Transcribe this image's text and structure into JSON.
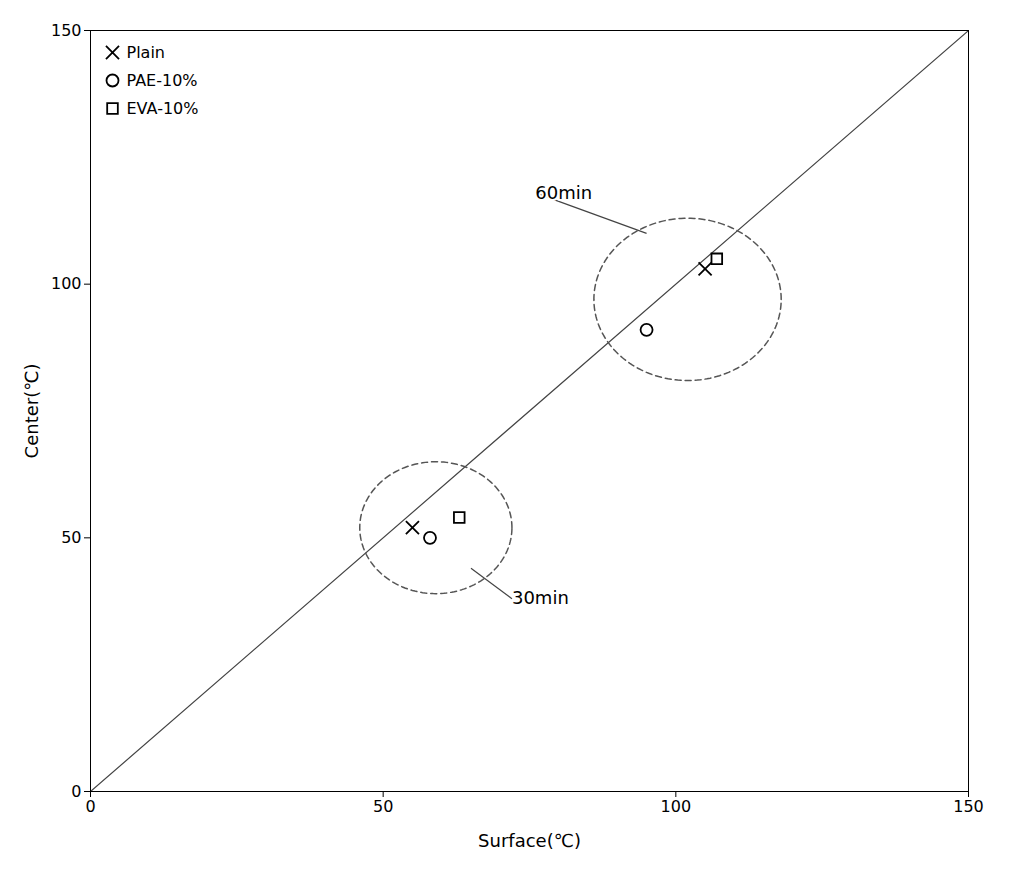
{
  "chart_data": {
    "type": "scatter",
    "xlabel": "Surface(℃)",
    "ylabel": "Center(℃)",
    "xlim": [
      0,
      150
    ],
    "ylim": [
      0,
      150
    ],
    "xticks": [
      0,
      50,
      100,
      150
    ],
    "yticks": [
      0,
      50,
      100,
      150
    ],
    "grid": false,
    "legend": "upper left",
    "series": [
      {
        "name": "Plain",
        "marker": "x",
        "color": "#000000",
        "x": [
          55,
          105
        ],
        "values": [
          52,
          103
        ]
      },
      {
        "name": "PAE-10%",
        "marker": "circle",
        "color": "#000000",
        "x": [
          58,
          95
        ],
        "values": [
          50,
          91
        ]
      },
      {
        "name": "EVA-10%",
        "marker": "square",
        "color": "#000000",
        "x": [
          63,
          107
        ],
        "values": [
          54,
          105
        ]
      }
    ],
    "reference_line": {
      "x": [
        0,
        150
      ],
      "y": [
        0,
        150
      ],
      "color": "#444444"
    },
    "ellipses": [
      {
        "center": [
          59,
          52
        ],
        "rx": 13,
        "ry": 13,
        "color": "#555555",
        "line_style": "dashed"
      },
      {
        "center": [
          102,
          97
        ],
        "rx": 16,
        "ry": 16,
        "color": "#555555",
        "line_style": "dashed"
      }
    ],
    "annotations": [
      {
        "text": "60min",
        "xy": [
          95,
          110
        ],
        "xytext": [
          76,
          118
        ],
        "color": "#444444"
      },
      {
        "text": "30min",
        "xy": [
          65,
          44
        ],
        "xytext": [
          72,
          38
        ],
        "color": "#444444"
      }
    ]
  }
}
